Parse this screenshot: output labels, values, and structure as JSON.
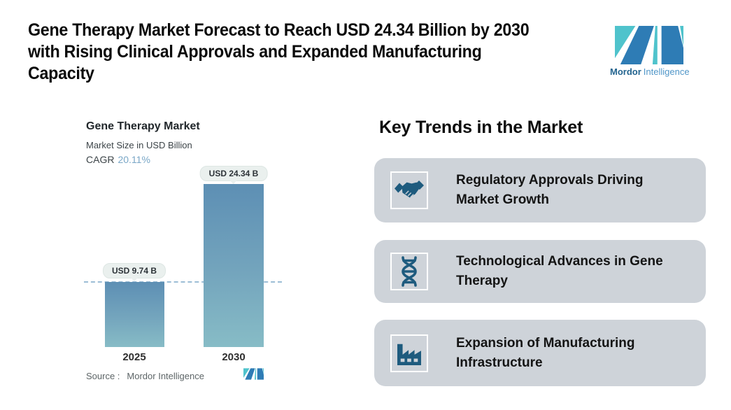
{
  "header": {
    "title_lines": [
      "Gene Therapy Market Forecast to Reach USD 24.34 Billion by 2030",
      "with Rising Clinical Approvals and Expanded Manufacturing",
      "Capacity"
    ]
  },
  "brand": {
    "name_primary": "Mordor",
    "name_secondary": "Intelligence",
    "colors": {
      "teal": "#4FC3CC",
      "blue": "#2E7CB5",
      "text_primary": "#23648F",
      "text_secondary": "#5096C8"
    }
  },
  "chart": {
    "title": "Gene Therapy Market",
    "subtitle": "Market Size in USD Billion",
    "cagr_label": "CAGR",
    "cagr_value": "20.11%",
    "source_label": "Source :",
    "source_value": "Mordor Intelligence"
  },
  "chart_data": {
    "type": "bar",
    "title": "Gene Therapy Market",
    "ylabel": "Market Size in USD Billion",
    "cagr_pct": 20.11,
    "categories": [
      "2025",
      "2030"
    ],
    "values": [
      9.74,
      24.34
    ],
    "value_labels": [
      "USD 9.74 B",
      "USD 24.34 B"
    ],
    "ylim": [
      0,
      26
    ],
    "grid": false,
    "legend": "none",
    "annotations": [
      "dashed horizontal reference line at the 2025 bar top"
    ],
    "bar_gradient": [
      "#5D8FB4",
      "#87BCC6"
    ]
  },
  "trends": {
    "heading": "Key Trends in the Market",
    "cards": [
      {
        "icon": "handshake-icon",
        "lines": [
          "Regulatory Approvals Driving",
          "Market Growth"
        ]
      },
      {
        "icon": "dna-icon",
        "lines": [
          "Technological Advances in Gene",
          "Therapy"
        ]
      },
      {
        "icon": "factory-icon",
        "lines": [
          "Expansion of Manufacturing",
          "Infrastructure"
        ]
      }
    ]
  },
  "colors": {
    "card_bg": "#CED3D9",
    "icon_blue": "#1E5B7E",
    "dashed_line": "#9CBDD6",
    "badge_bg": "#EAF0EE",
    "cagr_value_color": "#7AA7C7"
  }
}
